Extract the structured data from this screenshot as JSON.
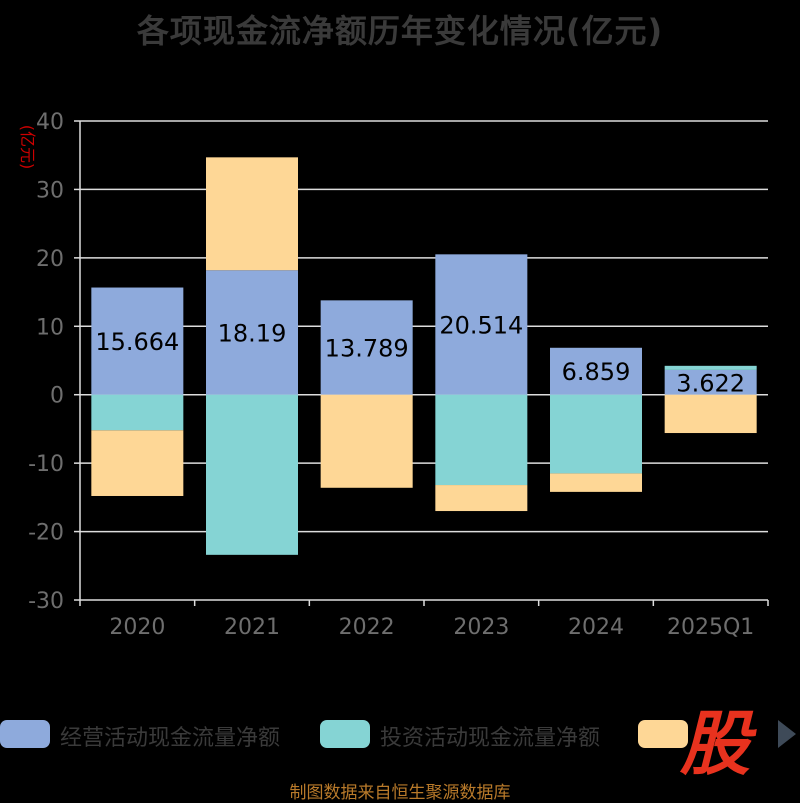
{
  "title": "各项现金流净额历年变化情况(亿元)",
  "source": "制图数据来自恒生聚源数据库",
  "watermark": "股",
  "colors": {
    "operating": "#8eaadc",
    "investing": "#85d4d4",
    "financing": "#fed796",
    "axis_text": "#6e6e6e",
    "unit_text": "#cc0000",
    "grid": "#dddddd",
    "bar_label": "#000000"
  },
  "legend": [
    {
      "label": "经营活动现金流量净额",
      "color": "#8eaadc"
    },
    {
      "label": "投资活动现金流量净额",
      "color": "#85d4d4"
    },
    {
      "label": "",
      "color": "#fed796"
    }
  ],
  "chart_data": {
    "type": "bar",
    "stacked": true,
    "title": "各项现金流净额历年变化情况(亿元)",
    "ylabel": "(亿元)",
    "ylim": [
      -30,
      40
    ],
    "yticks": [
      40,
      30,
      20,
      10,
      0,
      -10,
      -20,
      -30
    ],
    "categories": [
      "2020",
      "2021",
      "2022",
      "2023",
      "2024",
      "2025Q1"
    ],
    "series": [
      {
        "name": "经营活动现金流量净额",
        "values": [
          15.664,
          18.19,
          13.789,
          20.514,
          6.859,
          3.622
        ],
        "show_labels": true
      },
      {
        "name": "投资活动现金流量净额",
        "values": [
          -5.2,
          -23.4,
          0.0,
          -13.2,
          -11.5,
          0.6
        ],
        "show_labels": false
      },
      {
        "name": "",
        "values": [
          -9.6,
          16.5,
          -13.6,
          -3.8,
          -2.7,
          -5.6
        ],
        "show_labels": false
      }
    ],
    "grid": true,
    "legend_position": "bottom"
  }
}
